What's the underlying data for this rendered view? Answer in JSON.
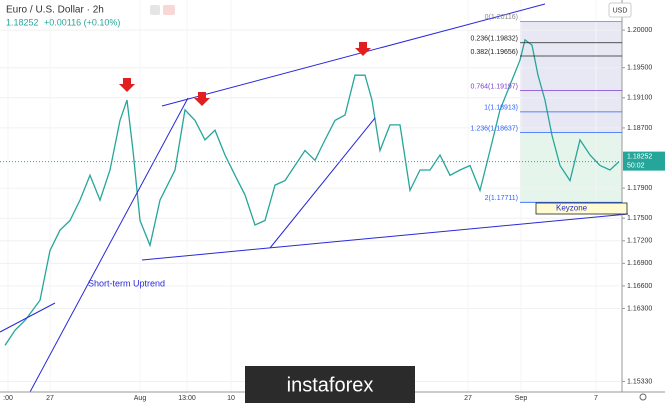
{
  "header": {
    "symbol": "Euro / U.S. Dollar · 2h",
    "last": "1.18252",
    "change": "+0.00116 (+0.10%)",
    "currency": "USD"
  },
  "chart_data": {
    "type": "line",
    "x": [
      5,
      15,
      25,
      40,
      50,
      60,
      70,
      80,
      90,
      100,
      110,
      120,
      127,
      133,
      140,
      150,
      160,
      175,
      185,
      195,
      205,
      215,
      225,
      235,
      245,
      255,
      265,
      275,
      285,
      295,
      305,
      315,
      325,
      335,
      345,
      355,
      365,
      372,
      380,
      390,
      400,
      410,
      420,
      430,
      440,
      450,
      460,
      470,
      480,
      490,
      500,
      510,
      520,
      525,
      532,
      538,
      545,
      552,
      560,
      570,
      580,
      590,
      600,
      610,
      619
    ],
    "series": [
      {
        "name": "EURUSD",
        "color": "#26a69a",
        "values": [
          1.1581,
          1.1601,
          1.1614,
          1.1641,
          1.1707,
          1.1734,
          1.1747,
          1.1774,
          1.1807,
          1.1774,
          1.1814,
          1.188,
          1.1907,
          1.184,
          1.1747,
          1.1714,
          1.1774,
          1.1814,
          1.1894,
          1.188,
          1.1854,
          1.1867,
          1.1834,
          1.1807,
          1.1781,
          1.1741,
          1.1747,
          1.1794,
          1.18,
          1.182,
          1.184,
          1.1827,
          1.1854,
          1.188,
          1.1887,
          1.194,
          1.194,
          1.1907,
          1.184,
          1.1874,
          1.1874,
          1.1787,
          1.1814,
          1.1814,
          1.1834,
          1.1807,
          1.1814,
          1.182,
          1.1787,
          1.184,
          1.1894,
          1.1927,
          1.196,
          1.1987,
          1.198,
          1.194,
          1.1907,
          1.186,
          1.182,
          1.18,
          1.1854,
          1.1834,
          1.182,
          1.1814,
          1.18252
        ]
      }
    ],
    "xlim": [
      0,
      620
    ],
    "xticks": [
      {
        "value": 8,
        "label": ":00"
      },
      {
        "value": 50,
        "label": "27"
      },
      {
        "value": 140,
        "label": "Aug"
      },
      {
        "value": 187,
        "label": "13:00"
      },
      {
        "value": 231,
        "label": "10"
      },
      {
        "value": 468,
        "label": "27"
      },
      {
        "value": 521,
        "label": "Sep"
      },
      {
        "value": 596,
        "label": "7"
      }
    ],
    "ylim": [
      1.1519,
      1.204
    ],
    "yticks": [
      {
        "value": 1.2,
        "label": "1.20000"
      },
      {
        "value": 1.195,
        "label": "1.19500"
      },
      {
        "value": 1.191,
        "label": "1.19100"
      },
      {
        "value": 1.187,
        "label": "1.18700"
      },
      {
        "value": 1.179,
        "label": "1.17900"
      },
      {
        "value": 1.175,
        "label": "1.17500"
      },
      {
        "value": 1.172,
        "label": "1.17200"
      },
      {
        "value": 1.169,
        "label": "1.16900"
      },
      {
        "value": 1.166,
        "label": "1.16600"
      },
      {
        "value": 1.163,
        "label": "1.16300"
      },
      {
        "value": 1.1533,
        "label": "1.15330"
      }
    ],
    "current": {
      "value": 1.18252,
      "label": "1.18252",
      "timer": "50:02"
    },
    "fib_levels": [
      {
        "value": 1.20116,
        "label": "0(1.20116)"
      },
      {
        "value": 1.19832,
        "label": "0.236(1.19832)"
      },
      {
        "value": 1.19656,
        "label": "0.382(1.19656)"
      },
      {
        "value": 1.19197,
        "label": "0.764(1.19197)"
      },
      {
        "value": 1.18913,
        "label": "1(1.18913)"
      },
      {
        "value": 1.18637,
        "label": "1.236(1.18637)"
      },
      {
        "value": 1.17711,
        "label": "2(1.17711)"
      }
    ],
    "annotations": {
      "keyzone": "Keyzone",
      "uptrend": "Short-term Uptrend"
    }
  },
  "watermark": "instaforex"
}
